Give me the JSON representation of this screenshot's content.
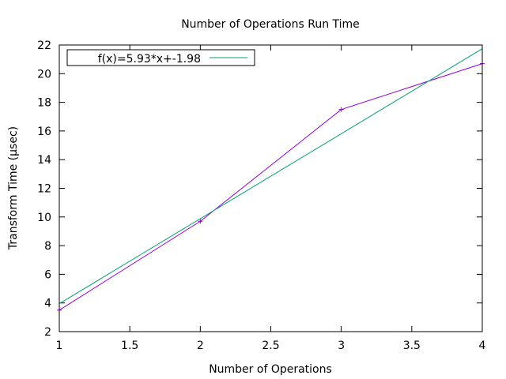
{
  "chart_data": {
    "type": "line",
    "title": "Number of Operations Run Time",
    "xlabel": "Number of Operations",
    "ylabel": "Transform Time (µsec)",
    "xlim": [
      1,
      4
    ],
    "ylim": [
      2,
      22
    ],
    "xticks": [
      "1",
      "1.5",
      "2",
      "2.5",
      "3",
      "3.5",
      "4"
    ],
    "yticks": [
      "2",
      "4",
      "6",
      "8",
      "10",
      "12",
      "14",
      "16",
      "18",
      "20",
      "22"
    ],
    "grid": false,
    "legend_position": "top-left",
    "series": [
      {
        "kind": "measured",
        "color": "#9400d3",
        "markers": true,
        "x": [
          1,
          2,
          3,
          4
        ],
        "y": [
          3.5,
          9.7,
          17.5,
          20.7
        ]
      },
      {
        "kind": "fit",
        "name": "f(x)=5.93*x+-1.98",
        "color": "#009e73",
        "markers": false,
        "slope": 5.93,
        "intercept": -1.98
      }
    ]
  }
}
